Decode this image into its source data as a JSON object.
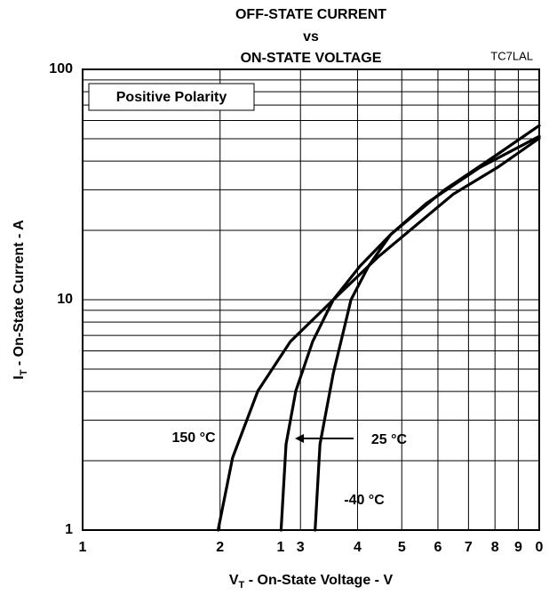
{
  "chart_data": {
    "type": "line",
    "title": [
      "OFF-STATE CURRENT",
      "vs",
      "ON-STATE VOLTAGE"
    ],
    "xlabel": {
      "main": "V",
      "sub": "T",
      "rest": " - On-State Voltage - V"
    },
    "ylabel": {
      "main": "I",
      "sub": "T",
      "rest": " - On-State Current - A"
    },
    "annotations": [
      "TC7LAL",
      "Positive Polarity",
      "1"
    ],
    "xlog": true,
    "ylog": true,
    "grid": true,
    "xlim": [
      1,
      10
    ],
    "ylim": [
      1,
      100
    ],
    "xticks": [
      1,
      2,
      3,
      4,
      5,
      6,
      7,
      8,
      9,
      {
        "value": 10,
        "label": "0"
      }
    ],
    "yticks": [
      1,
      10,
      100
    ],
    "minor_yticks": [
      2,
      3,
      4,
      5,
      6,
      7,
      8,
      9,
      20,
      30,
      40,
      50,
      60,
      70,
      80,
      90
    ],
    "series": [
      {
        "name": "150 °C",
        "color": "#000000",
        "x": [
          1.98,
          2.13,
          2.42,
          2.85,
          3.54,
          4.43,
          6.48,
          8.1,
          10
        ],
        "values": [
          1,
          2.06,
          4.02,
          6.58,
          10,
          15.3,
          28.7,
          37.5,
          50.2
        ]
      },
      {
        "name": "25 °C",
        "color": "#000000",
        "x": [
          2.72,
          2.79,
          2.93,
          3.19,
          3.54,
          4.05,
          4.73,
          6.19,
          8.1,
          10
        ],
        "values": [
          1,
          2.36,
          4.02,
          6.58,
          10,
          14,
          19.2,
          29.9,
          42.8,
          57
        ]
      },
      {
        "name": "-40 °C",
        "color": "#000000",
        "x": [
          3.23,
          3.31,
          3.54,
          3.78,
          3.87,
          4.23,
          4.73,
          5.66,
          7.41,
          10
        ],
        "values": [
          1,
          2.36,
          4.8,
          8.2,
          10,
          14,
          19.2,
          26.2,
          37.5,
          51.2
        ]
      }
    ]
  }
}
